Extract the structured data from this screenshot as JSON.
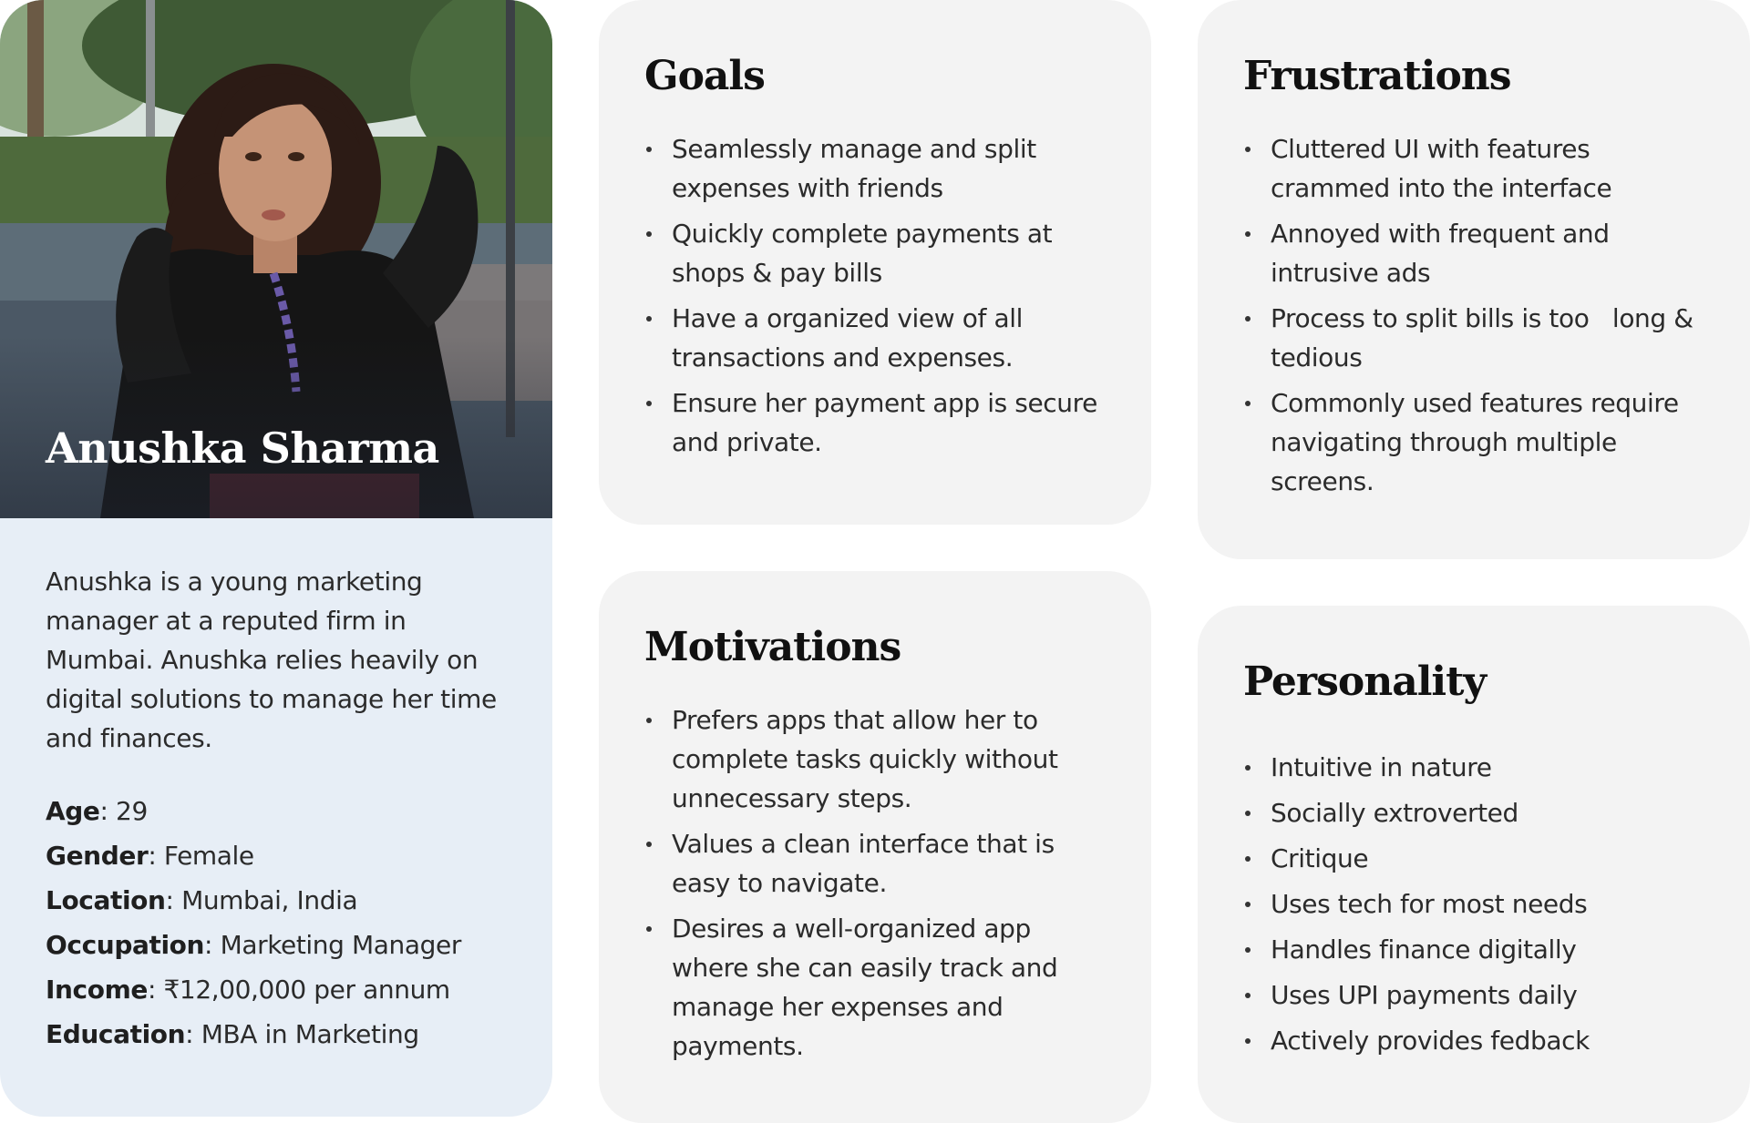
{
  "profile": {
    "name": "Anushka Sharma",
    "bio": "Anushka is a young marketing manager at a reputed firm in Mumbai. Anushka relies heavily on digital solutions to manage her time and finances.",
    "details": [
      {
        "label": "Age",
        "value": ": 29"
      },
      {
        "label": "Gender",
        "value": ": Female"
      },
      {
        "label": "Location",
        "value": ": Mumbai, India"
      },
      {
        "label": "Occupation",
        "value": ": Marketing Manager"
      },
      {
        "label": "Income",
        "value": ": ₹12,00,000 per annum"
      },
      {
        "label": "Education",
        "value": ": MBA in Marketing"
      }
    ]
  },
  "goals": {
    "title": "Goals",
    "items": [
      "Seamlessly manage and split expenses with friends",
      "Quickly complete payments at shops & pay bills",
      "Have a organized view of all transactions and expenses.",
      "Ensure her payment app is secure and private."
    ]
  },
  "frustrations": {
    "title": "Frustrations",
    "items": [
      "Cluttered UI with features crammed into the interface",
      "Annoyed with frequent and intrusive ads",
      "Process to split bills is too   long & tedious",
      "Commonly used features require navigating through multiple screens."
    ]
  },
  "motivations": {
    "title": "Motivations",
    "items": [
      "Prefers apps that allow her to complete tasks quickly without unnecessary steps.",
      "Values a clean interface that is easy to navigate.",
      "Desires a well-organized app where she can easily track and manage her expenses and payments."
    ]
  },
  "personality": {
    "title": "Personality",
    "items": [
      "Intuitive in nature",
      "Socially extroverted",
      "Critique",
      "Uses tech for most needs",
      "Handles finance digitally",
      "Uses UPI payments daily",
      "Actively provides fedback"
    ]
  }
}
